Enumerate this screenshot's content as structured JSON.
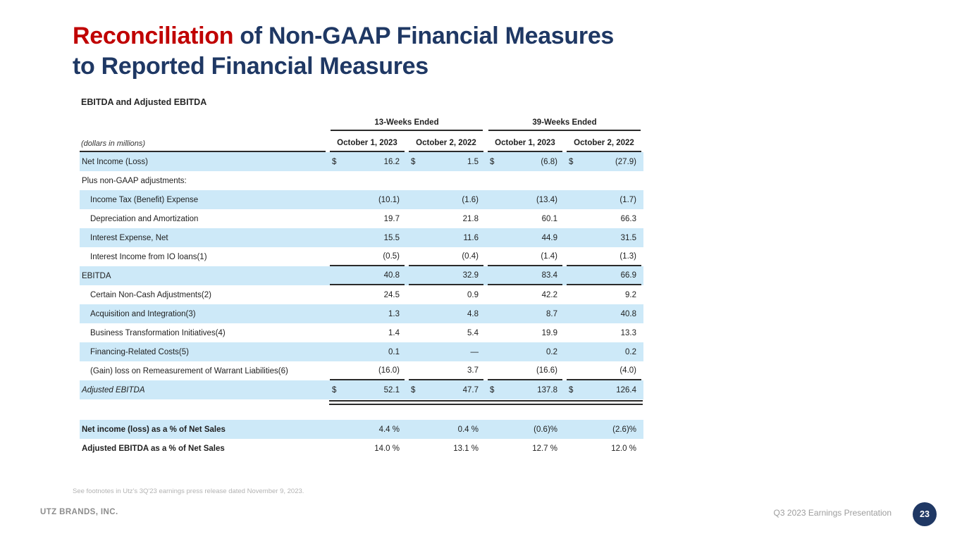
{
  "slide": {
    "title": {
      "highlight": "Reconciliation",
      "line1_rest": " of Non-GAAP Financial Measures",
      "line2": "to Reported Financial Measures"
    },
    "subtitle": "EBITDA and Adjusted EBITDA",
    "footnote": "See footnotes in Utz's 3Q'23 earnings press release dated November 9, 2023.",
    "footer": {
      "company": "UTZ BRANDS, INC.",
      "presentation_label": "Q3 2023 Earnings Presentation",
      "page_number": "23"
    }
  },
  "colors": {
    "accent_red": "#c00000",
    "navy": "#1f3864",
    "row_highlight_blue": "#cde9f8",
    "rule_black": "#2b2b2b",
    "footer_gray": "#8c8c8c",
    "footnote_gray": "#b3b3b3"
  },
  "chart_data": {
    "type": "table",
    "title": "EBITDA and Adjusted EBITDA",
    "units_label": "(dollars in millions)",
    "column_groups": [
      {
        "label": "13-Weeks Ended",
        "span": 2
      },
      {
        "label": "39-Weeks Ended",
        "span": 2
      }
    ],
    "columns": [
      "October 1, 2023",
      "October 2, 2022",
      "October 1, 2023",
      "October 2, 2022"
    ],
    "rows": [
      {
        "label": "Net Income  (Loss)",
        "bold": true,
        "shaded": true,
        "dollar": true,
        "currency": "$",
        "values": [
          "16.2",
          "1.5",
          "(6.8)",
          "(27.9)"
        ]
      },
      {
        "label": "Plus non-GAAP adjustments:",
        "shaded": false,
        "values": [
          "",
          "",
          "",
          ""
        ]
      },
      {
        "label": "Income Tax (Benefit) Expense",
        "indent": true,
        "shaded": true,
        "values": [
          "(10.1)",
          "(1.6)",
          "(13.4)",
          "(1.7)"
        ]
      },
      {
        "label": "Depreciation and Amortization",
        "indent": true,
        "shaded": false,
        "values": [
          "19.7",
          "21.8",
          "60.1",
          "66.3"
        ]
      },
      {
        "label": "Interest Expense, Net",
        "indent": true,
        "shaded": true,
        "values": [
          "15.5",
          "11.6",
          "44.9",
          "31.5"
        ]
      },
      {
        "label": "Interest Income from IO loans(1)",
        "indent": true,
        "shaded": false,
        "underline": true,
        "values": [
          "(0.5)",
          "(0.4)",
          "(1.4)",
          "(1.3)"
        ]
      },
      {
        "label": "EBITDA",
        "bold": true,
        "shaded": true,
        "underline": true,
        "values": [
          "40.8",
          "32.9",
          "83.4",
          "66.9"
        ]
      },
      {
        "label": "Certain Non-Cash Adjustments(2)",
        "indent": true,
        "shaded": false,
        "values": [
          "24.5",
          "0.9",
          "42.2",
          "9.2"
        ]
      },
      {
        "label": "Acquisition and Integration(3)",
        "indent": true,
        "shaded": true,
        "values": [
          "1.3",
          "4.8",
          "8.7",
          "40.8"
        ]
      },
      {
        "label": "Business Transformation Initiatives(4)",
        "indent": true,
        "shaded": false,
        "values": [
          "1.4",
          "5.4",
          "19.9",
          "13.3"
        ]
      },
      {
        "label": "Financing-Related Costs(5)",
        "indent": true,
        "shaded": true,
        "values": [
          "0.1",
          "—",
          "0.2",
          "0.2"
        ]
      },
      {
        "label": "(Gain) loss on Remeasurement of Warrant Liabilities(6)",
        "indent": true,
        "shaded": false,
        "underline": true,
        "values": [
          "(16.0)",
          "3.7",
          "(16.6)",
          "(4.0)"
        ]
      },
      {
        "label": "Adjusted EBITDA",
        "bold": true,
        "italic": true,
        "shaded": true,
        "dollar": true,
        "currency": "$",
        "double_underline": true,
        "values": [
          "52.1",
          "47.7",
          "137.8",
          "126.4"
        ]
      }
    ],
    "ratio_rows": [
      {
        "label": "Net income (loss) as a % of Net Sales",
        "label_bold": true,
        "shaded": true,
        "values": [
          "4.4 %",
          "0.4 %",
          "(0.6)%",
          "(2.6)%"
        ]
      },
      {
        "label": "Adjusted EBITDA as a % of Net Sales",
        "label_bold": true,
        "shaded": false,
        "values": [
          "14.0 %",
          "13.1 %",
          "12.7 %",
          "12.0 %"
        ]
      }
    ]
  }
}
